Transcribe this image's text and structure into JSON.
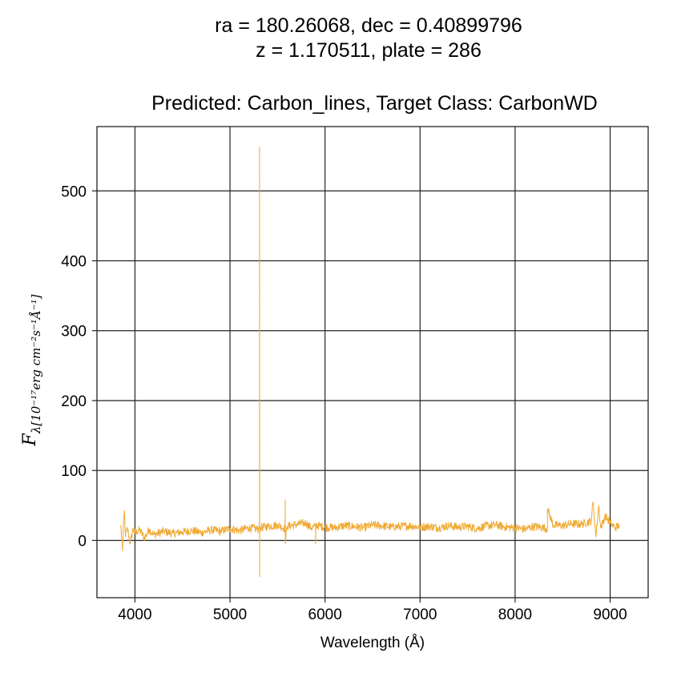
{
  "header": {
    "line1": "ra = 180.26068, dec = 0.40899796",
    "line2": "z = 1.170511, plate = 286",
    "subtitle": "Predicted: Carbon_lines, Target Class: CarbonWD"
  },
  "chart_data": {
    "type": "line",
    "title": "ra = 180.26068, dec = 0.40899796\nz = 1.170511, plate = 286",
    "subtitle": "Predicted: Carbon_lines, Target Class: CarbonWD",
    "xlabel": "Wavelength (Å)",
    "ylabel": "F_λ[10^-17 erg cm^-2 s^-1 Å^-1]",
    "ylabel_main": "F",
    "ylabel_sub": "λ[10⁻¹⁷erg cm⁻²s⁻¹Å⁻¹]",
    "xlim": [
      3600,
      9400
    ],
    "ylim": [
      -82,
      592
    ],
    "xticks": [
      4000,
      5000,
      6000,
      7000,
      8000,
      9000
    ],
    "yticks": [
      0,
      100,
      200,
      300,
      400,
      500
    ],
    "grid": true,
    "line_color": "#f0a830",
    "series": [
      {
        "x": [
          3850,
          3870,
          3880,
          3890,
          3900,
          3920,
          3950,
          3980,
          4000,
          4050,
          4100,
          4150,
          4200,
          4300,
          4400,
          4500,
          4600,
          4700,
          4800,
          4900,
          5000,
          5100,
          5200,
          5300,
          5310,
          5311,
          5312,
          5313,
          5320,
          5400,
          5500,
          5580,
          5581,
          5582,
          5600,
          5700,
          5800,
          5850,
          5900,
          5901,
          5902,
          6000,
          6100,
          6200,
          6300,
          6400,
          6500,
          6600,
          6700,
          6800,
          6900,
          7000,
          7100,
          7200,
          7300,
          7400,
          7500,
          7600,
          7700,
          7800,
          7900,
          8000,
          8100,
          8200,
          8300,
          8340,
          8341,
          8400,
          8500,
          8600,
          8700,
          8800,
          8820,
          8850,
          8880,
          8900,
          8950,
          9000,
          9050,
          9100
        ],
        "values": [
          22,
          -15,
          25,
          43,
          5,
          18,
          -5,
          17,
          10,
          15,
          3,
          16,
          8,
          13,
          10,
          12,
          14,
          11,
          15,
          13,
          17,
          14,
          18,
          16,
          19,
          563,
          -52,
          20,
          18,
          20,
          22,
          17,
          58,
          -5,
          20,
          23,
          25,
          18,
          20,
          -5,
          22,
          19,
          18,
          21,
          20,
          18,
          22,
          21,
          19,
          20,
          21,
          19,
          20,
          18,
          21,
          19,
          20,
          17,
          21,
          22,
          19,
          18,
          16,
          20,
          18,
          17,
          45,
          22,
          21,
          24,
          23,
          28,
          55,
          5,
          50,
          18,
          35,
          25,
          18,
          22
        ],
        "noise_amplitude": 6
      }
    ]
  }
}
